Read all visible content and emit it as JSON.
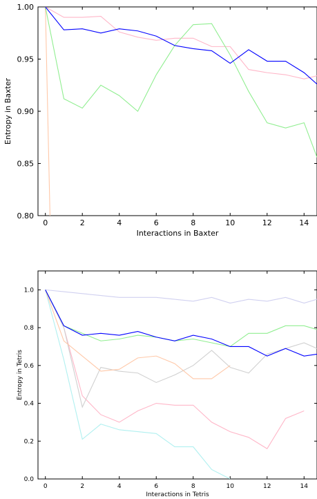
{
  "chart_data": [
    {
      "type": "line",
      "xlabel": "Interactions in Baxter",
      "ylabel": "Entropy in Baxter",
      "xlim": [
        -0.4,
        14.7
      ],
      "ylim": [
        0.8,
        1.0
      ],
      "xticks": [
        0,
        2,
        4,
        6,
        8,
        10,
        12,
        14
      ],
      "yticks": [
        0.8,
        0.85,
        0.9,
        0.95,
        1.0
      ],
      "xtick_labels": [
        "0",
        "2",
        "4",
        "6",
        "8",
        "10",
        "12",
        "14"
      ],
      "ytick_labels": [
        "0.80",
        "0.85",
        "0.90",
        "0.95",
        "1.00"
      ],
      "grid": false,
      "series": [
        {
          "color": "#ffc8a8",
          "x": [
            0,
            0.25
          ],
          "y": [
            1.0,
            0.8
          ]
        },
        {
          "color": "#ffb6c8",
          "x": [
            0,
            1,
            2,
            3,
            4,
            5,
            6,
            7,
            8,
            9,
            10,
            11,
            12,
            13,
            14,
            14.7
          ],
          "y": [
            1.0,
            0.99,
            0.99,
            0.991,
            0.976,
            0.971,
            0.968,
            0.97,
            0.97,
            0.962,
            0.962,
            0.94,
            0.937,
            0.935,
            0.931,
            0.934
          ]
        },
        {
          "color": "#90ee90",
          "x": [
            0,
            1,
            2,
            3,
            4,
            5,
            6,
            7,
            8,
            9,
            10,
            11,
            12,
            13,
            14,
            14.7
          ],
          "y": [
            1.0,
            0.912,
            0.903,
            0.925,
            0.915,
            0.9,
            0.935,
            0.963,
            0.983,
            0.984,
            0.954,
            0.919,
            0.889,
            0.884,
            0.889,
            0.856
          ]
        },
        {
          "color": "#0000ff",
          "x": [
            0,
            1,
            2,
            3,
            4,
            5,
            6,
            7,
            8,
            9,
            10,
            11,
            12,
            13,
            14,
            14.7
          ],
          "y": [
            1.0,
            0.978,
            0.979,
            0.975,
            0.979,
            0.977,
            0.972,
            0.963,
            0.96,
            0.958,
            0.946,
            0.959,
            0.948,
            0.948,
            0.937,
            0.926
          ]
        }
      ]
    },
    {
      "type": "line",
      "xlabel": "Interactions in Tetris",
      "ylabel": "Entropy in Tetris",
      "xlim": [
        -0.4,
        14.7
      ],
      "ylim": [
        0.0,
        1.1
      ],
      "xticks": [
        0,
        2,
        4,
        6,
        8,
        10,
        12,
        14
      ],
      "yticks": [
        0.0,
        0.2,
        0.4,
        0.6,
        0.8,
        1.0
      ],
      "xtick_labels": [
        "0",
        "2",
        "4",
        "6",
        "8",
        "10",
        "12",
        "14"
      ],
      "ytick_labels": [
        "0.0",
        "0.2",
        "0.4",
        "0.6",
        "0.8",
        "1.0"
      ],
      "grid": false,
      "series": [
        {
          "color": "#d0d0f0",
          "x": [
            0,
            1,
            2,
            3,
            4,
            5,
            6,
            7,
            8,
            9,
            10,
            11,
            12,
            13,
            14,
            14.7
          ],
          "y": [
            1.0,
            0.99,
            0.98,
            0.97,
            0.96,
            0.96,
            0.96,
            0.95,
            0.94,
            0.96,
            0.93,
            0.95,
            0.94,
            0.96,
            0.93,
            0.95
          ]
        },
        {
          "color": "#b0f0f0",
          "x": [
            0,
            1,
            2,
            3,
            4,
            5,
            6,
            7,
            8,
            9,
            10
          ],
          "y": [
            1.0,
            0.63,
            0.21,
            0.29,
            0.26,
            0.25,
            0.24,
            0.17,
            0.17,
            0.05,
            0.0
          ]
        },
        {
          "color": "#ffb6c8",
          "x": [
            0,
            1,
            2,
            3,
            4,
            5,
            6,
            7,
            8,
            9,
            10,
            11,
            12,
            13,
            14
          ],
          "y": [
            1.0,
            0.8,
            0.44,
            0.34,
            0.3,
            0.36,
            0.4,
            0.39,
            0.39,
            0.3,
            0.25,
            0.22,
            0.16,
            0.32,
            0.36
          ]
        },
        {
          "color": "#d0d0d0",
          "x": [
            0,
            1,
            2,
            3,
            4,
            5,
            6,
            7,
            8,
            9,
            10,
            11,
            12,
            13,
            14,
            14.7
          ],
          "y": [
            1.0,
            0.8,
            0.38,
            0.59,
            0.57,
            0.56,
            0.51,
            0.55,
            0.6,
            0.68,
            0.59,
            0.56,
            0.66,
            0.69,
            0.72,
            0.69
          ]
        },
        {
          "color": "#ffc8a8",
          "x": [
            0,
            1,
            2,
            3,
            4,
            5,
            6,
            7,
            8,
            9,
            10
          ],
          "y": [
            1.0,
            0.73,
            0.65,
            0.57,
            0.58,
            0.64,
            0.65,
            0.61,
            0.53,
            0.53,
            0.6
          ]
        },
        {
          "color": "#90ee90",
          "x": [
            0,
            1,
            2,
            3,
            4,
            5,
            6,
            7,
            8,
            9,
            10,
            11,
            12,
            13,
            14,
            14.7
          ],
          "y": [
            1.0,
            0.81,
            0.77,
            0.73,
            0.74,
            0.76,
            0.75,
            0.73,
            0.74,
            0.72,
            0.7,
            0.77,
            0.77,
            0.81,
            0.81,
            0.79
          ]
        },
        {
          "color": "#0000ff",
          "x": [
            0,
            1,
            2,
            3,
            4,
            5,
            6,
            7,
            8,
            9,
            10,
            11,
            12,
            13,
            14,
            14.7
          ],
          "y": [
            1.0,
            0.81,
            0.76,
            0.77,
            0.76,
            0.78,
            0.75,
            0.73,
            0.76,
            0.74,
            0.7,
            0.7,
            0.65,
            0.69,
            0.65,
            0.66
          ]
        }
      ]
    }
  ]
}
